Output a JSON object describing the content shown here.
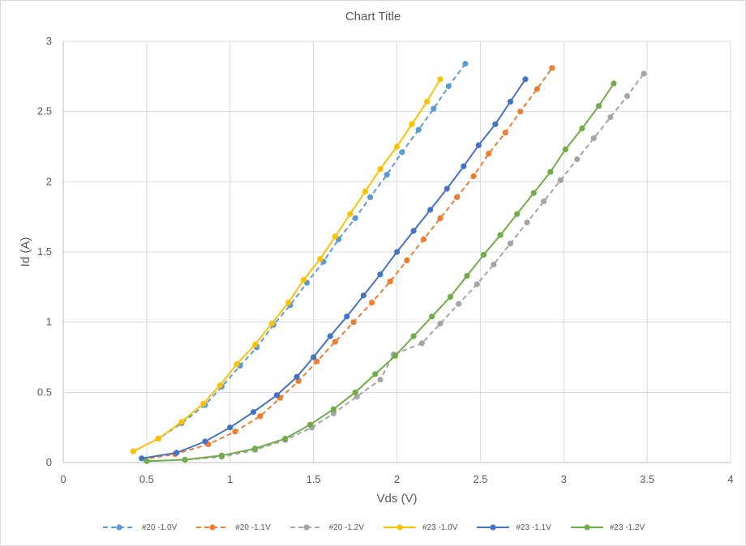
{
  "chart_data": {
    "type": "scatter",
    "title": "Chart Title",
    "xlabel": "Vds  (V)",
    "ylabel": "Id  (A)",
    "xlim": [
      0,
      4
    ],
    "ylim": [
      0,
      3
    ],
    "xticks": [
      "0",
      "0.5",
      "1",
      "1.5",
      "2",
      "2.5",
      "3",
      "3.5",
      "4"
    ],
    "yticks": [
      "0",
      "0.5",
      "1",
      "1.5",
      "2",
      "2.5",
      "3"
    ],
    "grid": true,
    "legend_position": "bottom",
    "series": [
      {
        "name": "#20 -1.0V",
        "color": "#5b9bd5",
        "style": "dashed",
        "x": [
          0.42,
          0.57,
          0.71,
          0.85,
          0.95,
          1.06,
          1.16,
          1.26,
          1.36,
          1.46,
          1.56,
          1.65,
          1.75,
          1.84,
          1.94,
          2.03,
          2.13,
          2.22,
          2.31,
          2.41
        ],
        "y": [
          0.08,
          0.17,
          0.28,
          0.41,
          0.54,
          0.69,
          0.82,
          0.98,
          1.12,
          1.28,
          1.43,
          1.59,
          1.74,
          1.89,
          2.05,
          2.21,
          2.37,
          2.52,
          2.68,
          2.84
        ]
      },
      {
        "name": "#20 -1.1V",
        "color": "#ed7d31",
        "style": "dashed",
        "x": [
          0.47,
          0.67,
          0.87,
          1.03,
          1.18,
          1.3,
          1.41,
          1.52,
          1.63,
          1.74,
          1.85,
          1.96,
          2.06,
          2.16,
          2.26,
          2.36,
          2.46,
          2.55,
          2.65,
          2.74,
          2.84,
          2.93
        ],
        "y": [
          0.02,
          0.06,
          0.13,
          0.22,
          0.33,
          0.46,
          0.58,
          0.72,
          0.86,
          1.0,
          1.14,
          1.29,
          1.44,
          1.59,
          1.74,
          1.89,
          2.04,
          2.2,
          2.35,
          2.5,
          2.66,
          2.81
        ],
        "markers_from": 1
      },
      {
        "name": "#20 -1.2V",
        "color": "#a5a5a5",
        "style": "dashed",
        "x": [
          0.5,
          0.73,
          0.95,
          1.15,
          1.33,
          1.49,
          1.62,
          1.76,
          1.9,
          1.98,
          2.15,
          2.26,
          2.37,
          2.48,
          2.58,
          2.68,
          2.78,
          2.88,
          2.98,
          3.08,
          3.18,
          3.28,
          3.38,
          3.48
        ],
        "y": [
          0.01,
          0.02,
          0.04,
          0.09,
          0.16,
          0.25,
          0.35,
          0.47,
          0.59,
          0.77,
          0.85,
          0.99,
          1.13,
          1.27,
          1.41,
          1.56,
          1.71,
          1.86,
          2.01,
          2.16,
          2.31,
          2.46,
          2.61,
          2.77
        ],
        "markers_from": 1
      },
      {
        "name": "#23 -1.0V",
        "color": "#ffc000",
        "style": "solid",
        "x": [
          0.42,
          0.57,
          0.71,
          0.84,
          0.94,
          1.04,
          1.15,
          1.25,
          1.35,
          1.44,
          1.54,
          1.63,
          1.72,
          1.81,
          1.9,
          2.0,
          2.09,
          2.18,
          2.26
        ],
        "y": [
          0.08,
          0.17,
          0.29,
          0.42,
          0.55,
          0.7,
          0.84,
          0.99,
          1.14,
          1.3,
          1.45,
          1.61,
          1.77,
          1.93,
          2.09,
          2.25,
          2.41,
          2.57,
          2.73
        ]
      },
      {
        "name": "#23 -1.1V",
        "color": "#4472c4",
        "style": "solid",
        "x": [
          0.47,
          0.68,
          0.85,
          1.0,
          1.14,
          1.28,
          1.4,
          1.5,
          1.6,
          1.7,
          1.8,
          1.9,
          2.0,
          2.1,
          2.2,
          2.3,
          2.4,
          2.49,
          2.59,
          2.68,
          2.77
        ],
        "y": [
          0.03,
          0.07,
          0.15,
          0.25,
          0.36,
          0.48,
          0.61,
          0.75,
          0.9,
          1.04,
          1.19,
          1.34,
          1.5,
          1.65,
          1.8,
          1.95,
          2.11,
          2.26,
          2.41,
          2.57,
          2.73
        ]
      },
      {
        "name": "#23 -1.2V",
        "color": "#70ad47",
        "style": "solid",
        "x": [
          0.5,
          0.73,
          0.95,
          1.15,
          1.33,
          1.48,
          1.62,
          1.75,
          1.87,
          1.99,
          2.1,
          2.21,
          2.32,
          2.42,
          2.52,
          2.62,
          2.72,
          2.82,
          2.92,
          3.01,
          3.11,
          3.21,
          3.3
        ],
        "y": [
          0.01,
          0.02,
          0.05,
          0.1,
          0.17,
          0.27,
          0.38,
          0.5,
          0.63,
          0.76,
          0.9,
          1.04,
          1.18,
          1.33,
          1.48,
          1.62,
          1.77,
          1.92,
          2.07,
          2.23,
          2.38,
          2.54,
          2.7
        ]
      }
    ]
  }
}
